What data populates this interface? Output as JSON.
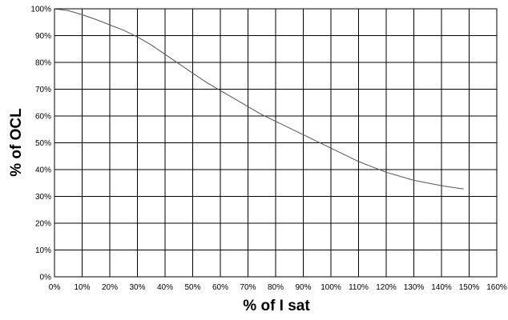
{
  "chart_data": {
    "type": "line",
    "title": "",
    "xlabel": "% of I sat",
    "ylabel": "% of OCL",
    "xlim": [
      0,
      160
    ],
    "ylim": [
      0,
      100
    ],
    "grid": true,
    "x_ticks": [
      0,
      10,
      20,
      30,
      40,
      50,
      60,
      70,
      80,
      90,
      100,
      110,
      120,
      130,
      140,
      150,
      160
    ],
    "y_ticks": [
      0,
      10,
      20,
      30,
      40,
      50,
      60,
      70,
      80,
      90,
      100
    ],
    "x_tick_labels": [
      "0%",
      "10%",
      "20%",
      "30%",
      "40%",
      "50%",
      "60%",
      "70%",
      "80%",
      "90%",
      "100%",
      "110%",
      "120%",
      "130%",
      "140%",
      "150%",
      "160%"
    ],
    "y_tick_labels": [
      "0%",
      "10%",
      "20%",
      "30%",
      "40%",
      "50%",
      "60%",
      "70%",
      "80%",
      "90%",
      "100%"
    ],
    "series": [
      {
        "x": [
          0,
          5,
          10,
          15,
          20,
          25,
          30,
          35,
          40,
          45,
          50,
          55,
          60,
          65,
          70,
          75,
          80,
          85,
          90,
          95,
          100,
          105,
          110,
          115,
          120,
          125,
          130,
          135,
          140,
          145,
          148
        ],
        "y": [
          100,
          99.3,
          97.8,
          96,
          94,
          92,
          89.5,
          86.5,
          83,
          79.5,
          76,
          72.5,
          69.5,
          66.5,
          63.5,
          60.5,
          58,
          55.5,
          53,
          50.5,
          48,
          45.5,
          43,
          41,
          39,
          37.5,
          36,
          35,
          34,
          33.2,
          32.8
        ],
        "color": "#555555"
      }
    ]
  }
}
